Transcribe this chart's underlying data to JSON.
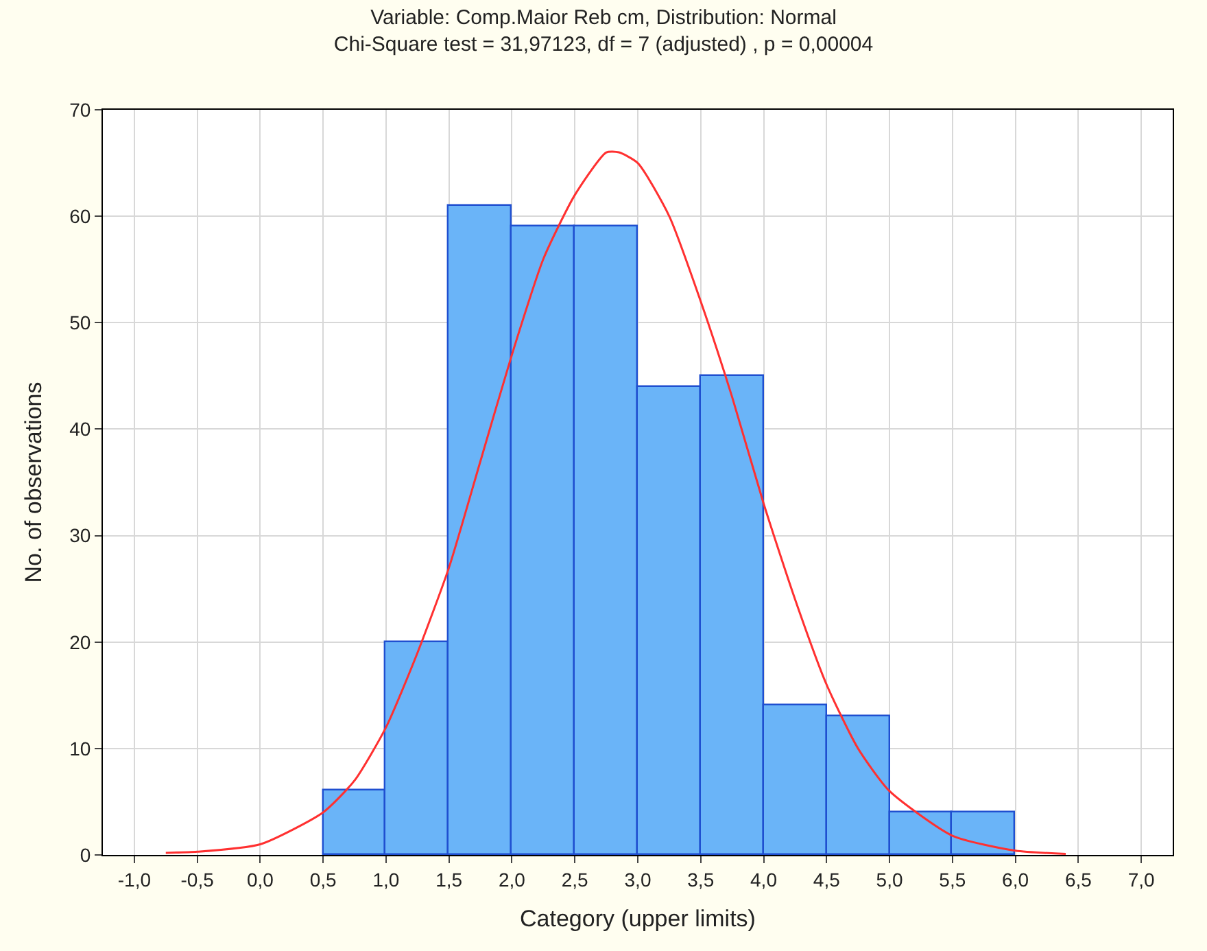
{
  "chart_data": {
    "type": "histogram",
    "title": "Variable: Comp.Maior Reb cm, Distribution: Normal",
    "subtitle": "Chi-Square test = 31,97123, df = 7 (adjusted) , p = 0,00004",
    "xlabel": "Category (upper limits)",
    "ylabel": "No. of observations",
    "bins": [
      0.5,
      1.0,
      1.5,
      2.0,
      2.5,
      3.0,
      3.5,
      4.0,
      4.5,
      5.0,
      5.5,
      6.0
    ],
    "values": [
      6,
      20,
      61,
      59,
      59,
      44,
      45,
      14,
      13,
      4,
      4
    ],
    "color": "#6ab4f8",
    "series": [
      {
        "type": "line",
        "color": "#ff3030",
        "x": [
          -0.75,
          -0.5,
          0,
          0.5,
          0.75,
          1.0,
          1.25,
          1.5,
          1.75,
          2.0,
          2.25,
          2.5,
          2.75,
          2.85,
          3.0,
          3.25,
          3.5,
          3.75,
          4.0,
          4.25,
          4.5,
          4.75,
          5.0,
          5.5,
          6.0,
          6.4
        ],
        "values": [
          0.2,
          0.3,
          1,
          4,
          7,
          12,
          19,
          27,
          37,
          47,
          56,
          62,
          66,
          66,
          65,
          60,
          52,
          43,
          33,
          24,
          16,
          10,
          6,
          1.8,
          0.4,
          0.1
        ]
      }
    ],
    "xlim": [
      -1.25,
      7.25
    ],
    "xticks": [
      {
        "value": -1,
        "label": "-1,0"
      },
      {
        "value": -0.5,
        "label": "-0,5"
      },
      {
        "value": 0,
        "label": "0,0"
      },
      {
        "value": 0.5,
        "label": "0,5"
      },
      {
        "value": 1,
        "label": "1,0"
      },
      {
        "value": 1.5,
        "label": "1,5"
      },
      {
        "value": 2,
        "label": "2,0"
      },
      {
        "value": 2.5,
        "label": "2,5"
      },
      {
        "value": 3,
        "label": "3,0"
      },
      {
        "value": 3.5,
        "label": "3,5"
      },
      {
        "value": 4,
        "label": "4,0"
      },
      {
        "value": 4.5,
        "label": "4,5"
      },
      {
        "value": 5,
        "label": "5,0"
      },
      {
        "value": 5.5,
        "label": "5,5"
      },
      {
        "value": 6,
        "label": "6,0"
      },
      {
        "value": 6.5,
        "label": "6,5"
      },
      {
        "value": 7,
        "label": "7,0"
      }
    ],
    "ylim": [
      0,
      70
    ],
    "yticks": [
      0,
      10,
      20,
      30,
      40,
      50,
      60,
      70
    ],
    "grid": true
  }
}
